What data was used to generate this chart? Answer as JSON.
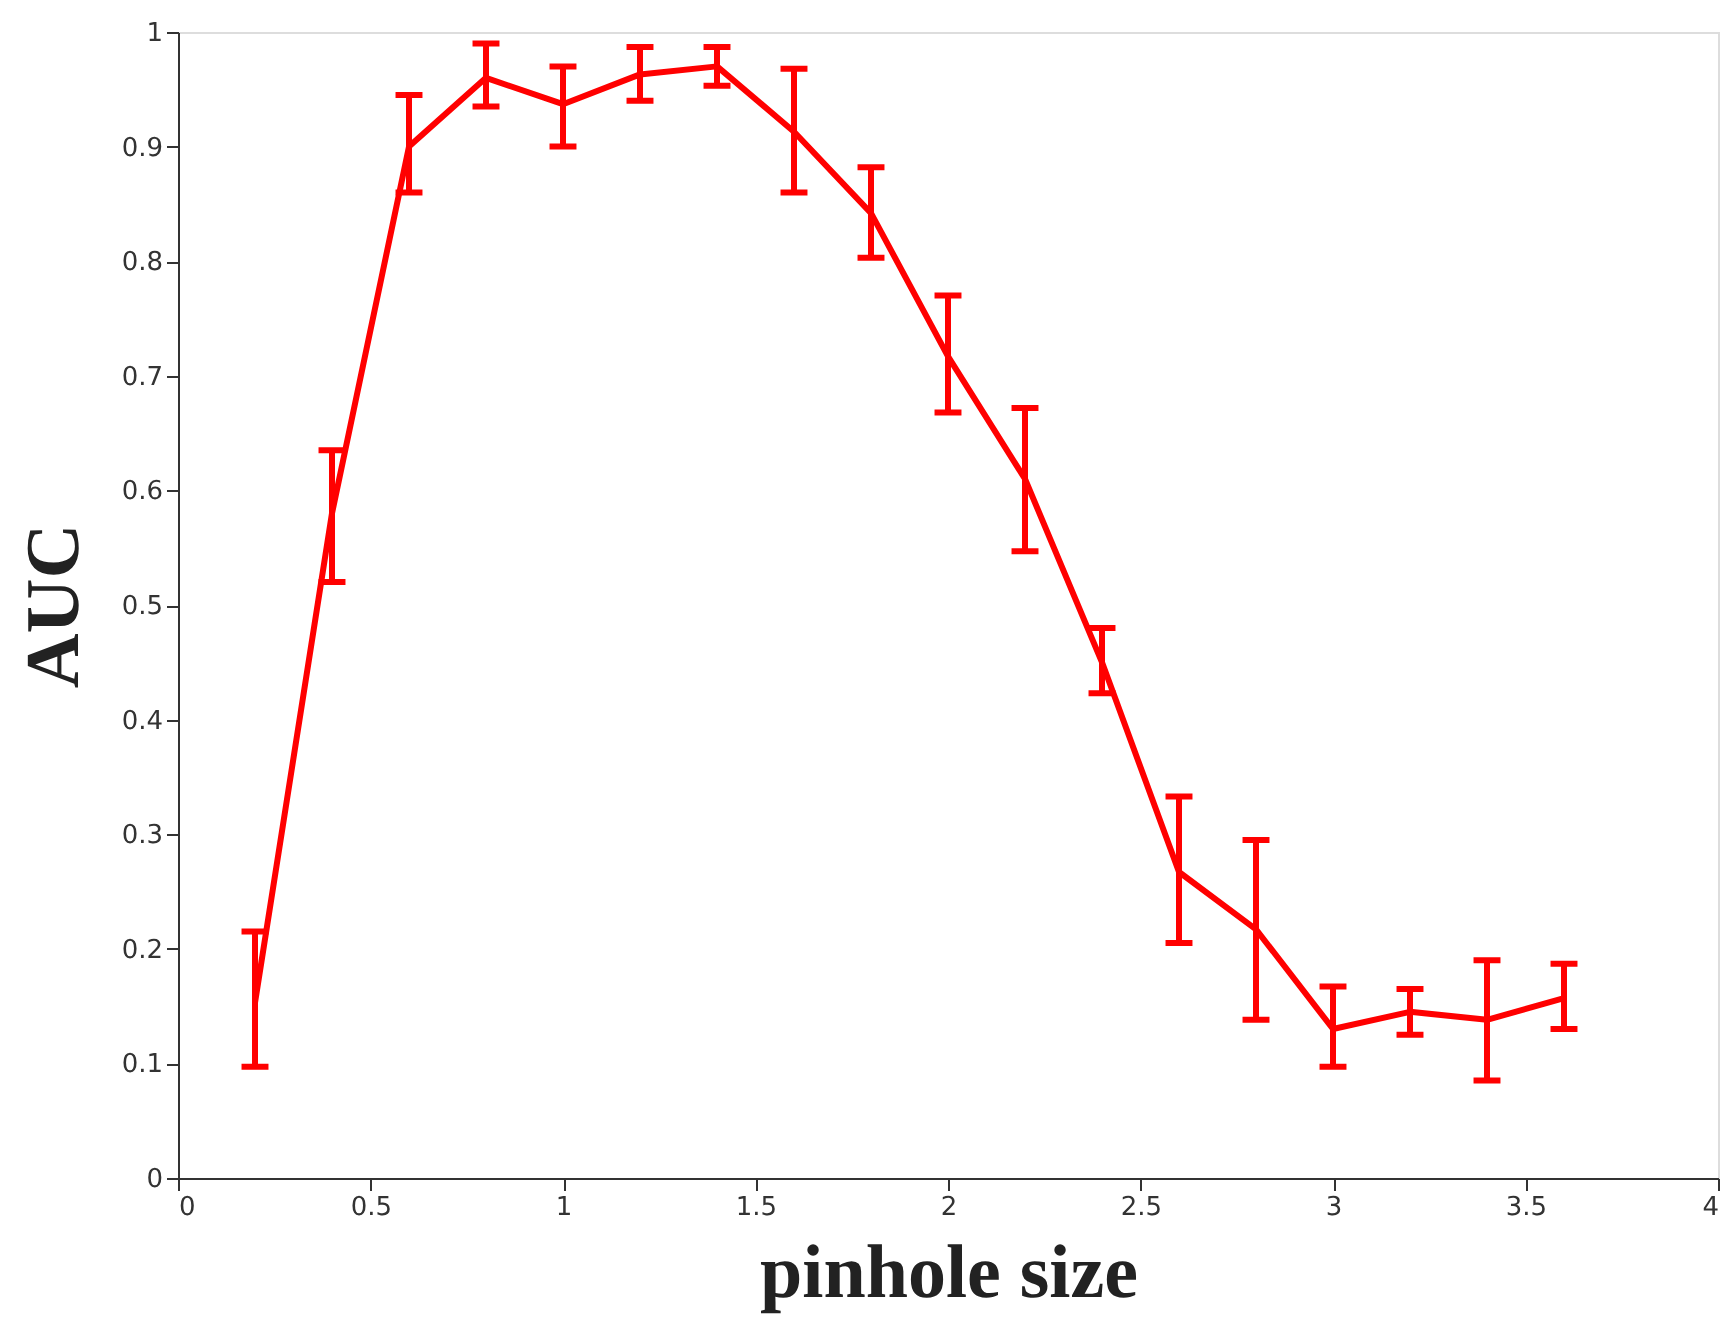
{
  "chart_data": {
    "type": "line",
    "xlabel": "pinhole size",
    "ylabel": "AUC",
    "x": [
      0.2,
      0.4,
      0.6,
      0.8,
      1.0,
      1.2,
      1.4,
      1.6,
      1.8,
      2.0,
      2.2,
      2.4,
      2.6,
      2.8,
      3.0,
      3.2,
      3.4,
      3.6
    ],
    "color": "#ff0000",
    "values": [
      0.153,
      0.58,
      0.9,
      0.96,
      0.937,
      0.963,
      0.97,
      0.913,
      0.842,
      0.717,
      0.61,
      0.45,
      0.267,
      0.217,
      0.13,
      0.145,
      0.138,
      0.157
    ],
    "errors": [
      [
        0.097,
        0.215
      ],
      [
        0.52,
        0.635
      ],
      [
        0.86,
        0.945
      ],
      [
        0.935,
        0.99
      ],
      [
        0.9,
        0.97
      ],
      [
        0.94,
        0.987
      ],
      [
        0.953,
        0.987
      ],
      [
        0.86,
        0.968
      ],
      [
        0.803,
        0.882
      ],
      [
        0.668,
        0.77
      ],
      [
        0.547,
        0.672
      ],
      [
        0.423,
        0.48
      ],
      [
        0.205,
        0.333
      ],
      [
        0.138,
        0.295
      ],
      [
        0.097,
        0.167
      ],
      [
        0.125,
        0.165
      ],
      [
        0.085,
        0.19
      ],
      [
        0.13,
        0.187
      ]
    ],
    "xlim": [
      0,
      4
    ],
    "xticks": [
      0,
      0.5,
      1,
      1.5,
      2,
      2.5,
      3,
      3.5,
      4
    ],
    "ylim": [
      0,
      1
    ],
    "yticks": [
      0,
      0.1,
      0.2,
      0.3,
      0.4,
      0.5,
      0.6,
      0.7,
      0.8,
      0.9,
      1
    ],
    "grid": false,
    "marker": "none",
    "line_style": "solid"
  }
}
